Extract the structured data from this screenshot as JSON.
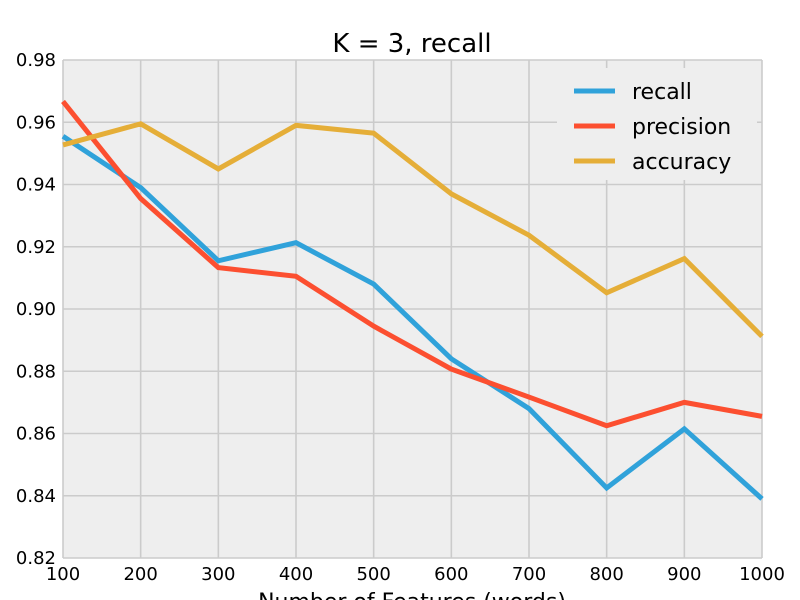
{
  "chart_data": {
    "type": "line",
    "title": "K = 3, recall",
    "xlabel": "Number of Features (words)",
    "ylabel": "",
    "x": [
      100,
      200,
      300,
      400,
      500,
      600,
      700,
      800,
      900,
      1000
    ],
    "xlim": [
      100,
      1000
    ],
    "ylim": [
      0.82,
      0.98
    ],
    "xticks": [
      "100",
      "200",
      "300",
      "400",
      "500",
      "600",
      "700",
      "800",
      "900",
      "1000"
    ],
    "yticks": [
      "0.82",
      "0.84",
      "0.86",
      "0.88",
      "0.90",
      "0.92",
      "0.94",
      "0.96",
      "0.98"
    ],
    "grid": true,
    "legend_position": "upper-right",
    "series": [
      {
        "name": "recall",
        "color": "#30a2da",
        "values": [
          0.9555,
          0.939,
          0.9155,
          0.9213,
          0.908,
          0.884,
          0.868,
          0.8425,
          0.8615,
          0.839
        ]
      },
      {
        "name": "precision",
        "color": "#fc4f30",
        "values": [
          0.9667,
          0.9355,
          0.9133,
          0.9105,
          0.8945,
          0.8807,
          0.8717,
          0.8625,
          0.87,
          0.8655
        ]
      },
      {
        "name": "accuracy",
        "color": "#e5ae38",
        "values": [
          0.9527,
          0.9595,
          0.945,
          0.959,
          0.9565,
          0.937,
          0.9237,
          0.9052,
          0.9162,
          0.8912
        ]
      }
    ]
  }
}
